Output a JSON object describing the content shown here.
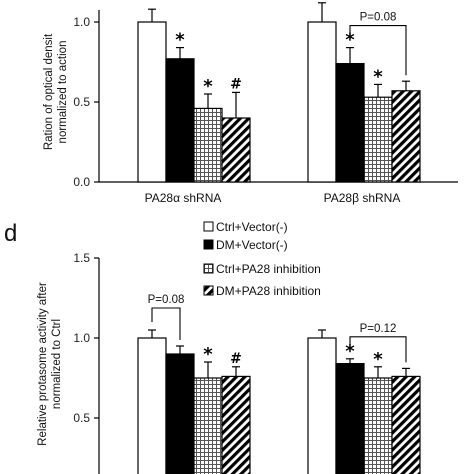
{
  "colors": {
    "axis": "#000000",
    "fill_dark": "#000000",
    "fill_white": "#ffffff"
  },
  "chart_data": [
    {
      "type": "bar",
      "panel_label": "",
      "ylabel_lines": [
        "Ration of optical densit",
        "normalized to action"
      ],
      "ylim": [
        0,
        1.0
      ],
      "yticks": [
        "0.0",
        "0.5",
        "1.0"
      ],
      "groups": [
        "PA28α shRNA",
        "PA28β shRNA"
      ],
      "series": [
        {
          "name": "Ctrl+Vector(-)",
          "pattern": "white",
          "values": [
            1.0,
            1.0
          ],
          "errors": [
            0.08,
            0.12
          ],
          "marks": [
            "",
            ""
          ]
        },
        {
          "name": "DM+Vector(-)",
          "pattern": "black",
          "values": [
            0.77,
            0.74
          ],
          "errors": [
            0.07,
            0.1
          ],
          "marks": [
            "*",
            "*"
          ]
        },
        {
          "name": "Ctrl+PA28 inhibition",
          "pattern": "grid",
          "values": [
            0.46,
            0.53
          ],
          "errors": [
            0.09,
            0.08
          ],
          "marks": [
            "*",
            "*"
          ]
        },
        {
          "name": "DM+PA28 inhibition",
          "pattern": "hatch",
          "values": [
            0.4,
            0.57
          ],
          "errors": [
            0.16,
            0.06
          ],
          "marks": [
            "#",
            ""
          ]
        }
      ],
      "brackets": [
        {
          "group": 1,
          "from": 1,
          "to": 3,
          "label": "P=0.08"
        }
      ]
    },
    {
      "type": "bar",
      "panel_label": "d",
      "ylabel_lines": [
        "Relative protasome activity after",
        "normalized to Ctrl"
      ],
      "ylim": [
        0,
        1.5
      ],
      "yticks": [
        "0.5",
        "1.0",
        "1.5"
      ],
      "groups": [
        "",
        ""
      ],
      "series": [
        {
          "name": "Ctrl+Vector(-)",
          "pattern": "white",
          "values": [
            1.0,
            1.0
          ],
          "errors": [
            0.05,
            0.05
          ],
          "marks": [
            "",
            ""
          ]
        },
        {
          "name": "DM+Vector(-)",
          "pattern": "black",
          "values": [
            0.9,
            0.84
          ],
          "errors": [
            0.05,
            0.03
          ],
          "marks": [
            "",
            "*"
          ]
        },
        {
          "name": "Ctrl+PA28 inhibition",
          "pattern": "grid",
          "values": [
            0.75,
            0.75
          ],
          "errors": [
            0.1,
            0.07
          ],
          "marks": [
            "*",
            "*"
          ]
        },
        {
          "name": "DM+PA28 inhibition",
          "pattern": "hatch",
          "values": [
            0.76,
            0.76
          ],
          "errors": [
            0.06,
            0.05
          ],
          "marks": [
            "#",
            ""
          ]
        }
      ],
      "brackets": [
        {
          "group": 0,
          "from": 0,
          "to": 1,
          "label": "P=0.08"
        },
        {
          "group": 1,
          "from": 1,
          "to": 3,
          "label": "P=0.12"
        }
      ]
    }
  ],
  "legend": [
    {
      "label": "Ctrl+Vector(-)",
      "pattern": "white"
    },
    {
      "label": "DM+Vector(-)",
      "pattern": "black"
    },
    {
      "label": "Ctrl+PA28 inhibition",
      "pattern": "grid"
    },
    {
      "label": "DM+PA28 inhibition",
      "pattern": "hatch"
    }
  ]
}
